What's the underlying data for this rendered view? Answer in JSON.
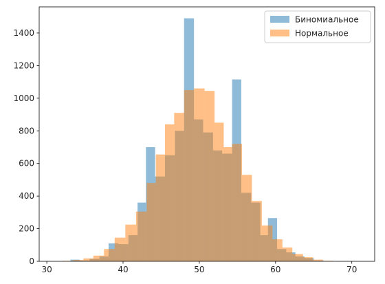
{
  "chart_data": {
    "type": "histogram",
    "title": "",
    "xlabel": "",
    "ylabel": "",
    "xlim": [
      29,
      73
    ],
    "ylim": [
      0,
      1560
    ],
    "xticks": [
      30,
      40,
      50,
      60,
      70
    ],
    "yticks": [
      0,
      200,
      400,
      600,
      800,
      1000,
      1200,
      1400
    ],
    "grid": false,
    "legend_position": "top-right",
    "series": [
      {
        "name": "Биномиальное",
        "color": "#1f77b4",
        "alpha": 0.5,
        "bins": [
          {
            "x0": 33.1,
            "x1": 34.3,
            "value": 10
          },
          {
            "x0": 34.3,
            "x1": 35.6,
            "value": 5
          },
          {
            "x0": 35.6,
            "x1": 36.9,
            "value": 15
          },
          {
            "x0": 36.9,
            "x1": 38.1,
            "value": 30
          },
          {
            "x0": 38.1,
            "x1": 39.4,
            "value": 110
          },
          {
            "x0": 39.4,
            "x1": 40.7,
            "value": 105
          },
          {
            "x0": 40.7,
            "x1": 41.9,
            "value": 160
          },
          {
            "x0": 41.9,
            "x1": 43.0,
            "value": 360
          },
          {
            "x0": 43.0,
            "x1": 44.2,
            "value": 700
          },
          {
            "x0": 44.2,
            "x1": 45.5,
            "value": 520
          },
          {
            "x0": 45.5,
            "x1": 46.8,
            "value": 650
          },
          {
            "x0": 46.8,
            "x1": 48.0,
            "value": 800
          },
          {
            "x0": 48.0,
            "x1": 49.3,
            "value": 1490
          },
          {
            "x0": 49.3,
            "x1": 50.5,
            "value": 870
          },
          {
            "x0": 50.5,
            "x1": 51.8,
            "value": 790
          },
          {
            "x0": 51.8,
            "x1": 53.0,
            "value": 680
          },
          {
            "x0": 53.0,
            "x1": 54.3,
            "value": 660
          },
          {
            "x0": 54.3,
            "x1": 55.5,
            "value": 1115
          },
          {
            "x0": 55.5,
            "x1": 56.8,
            "value": 420
          },
          {
            "x0": 56.8,
            "x1": 58.0,
            "value": 360
          },
          {
            "x0": 58.0,
            "x1": 59.0,
            "value": 160
          },
          {
            "x0": 59.0,
            "x1": 60.2,
            "value": 265
          },
          {
            "x0": 60.2,
            "x1": 61.4,
            "value": 75
          },
          {
            "x0": 61.4,
            "x1": 62.6,
            "value": 55
          },
          {
            "x0": 62.6,
            "x1": 63.8,
            "value": 30
          },
          {
            "x0": 63.8,
            "x1": 65.0,
            "value": 20
          },
          {
            "x0": 65.0,
            "x1": 66.3,
            "value": 5
          }
        ]
      },
      {
        "name": "Нормальное",
        "color": "#ff7f0e",
        "alpha": 0.5,
        "bins": [
          {
            "x0": 32.0,
            "x1": 33.4,
            "value": 3
          },
          {
            "x0": 33.4,
            "x1": 34.8,
            "value": 8
          },
          {
            "x0": 34.8,
            "x1": 36.1,
            "value": 18
          },
          {
            "x0": 36.1,
            "x1": 37.5,
            "value": 35
          },
          {
            "x0": 37.5,
            "x1": 38.9,
            "value": 75
          },
          {
            "x0": 38.9,
            "x1": 40.3,
            "value": 145
          },
          {
            "x0": 40.3,
            "x1": 41.7,
            "value": 225
          },
          {
            "x0": 41.7,
            "x1": 43.1,
            "value": 305
          },
          {
            "x0": 43.1,
            "x1": 44.3,
            "value": 480
          },
          {
            "x0": 44.3,
            "x1": 45.5,
            "value": 655
          },
          {
            "x0": 45.5,
            "x1": 46.7,
            "value": 840
          },
          {
            "x0": 46.7,
            "x1": 48.0,
            "value": 910
          },
          {
            "x0": 48.0,
            "x1": 49.3,
            "value": 1050
          },
          {
            "x0": 49.3,
            "x1": 50.7,
            "value": 1060
          },
          {
            "x0": 50.7,
            "x1": 52.0,
            "value": 1045
          },
          {
            "x0": 52.0,
            "x1": 53.2,
            "value": 850
          },
          {
            "x0": 53.2,
            "x1": 54.3,
            "value": 700
          },
          {
            "x0": 54.3,
            "x1": 55.6,
            "value": 720
          },
          {
            "x0": 55.6,
            "x1": 56.9,
            "value": 530
          },
          {
            "x0": 56.9,
            "x1": 58.2,
            "value": 370
          },
          {
            "x0": 58.2,
            "x1": 59.6,
            "value": 220
          },
          {
            "x0": 59.6,
            "x1": 60.9,
            "value": 135
          },
          {
            "x0": 60.9,
            "x1": 62.2,
            "value": 85
          },
          {
            "x0": 62.2,
            "x1": 63.6,
            "value": 45
          },
          {
            "x0": 63.6,
            "x1": 64.9,
            "value": 25
          },
          {
            "x0": 64.9,
            "x1": 66.2,
            "value": 10
          },
          {
            "x0": 66.2,
            "x1": 67.6,
            "value": 3
          }
        ]
      }
    ]
  }
}
